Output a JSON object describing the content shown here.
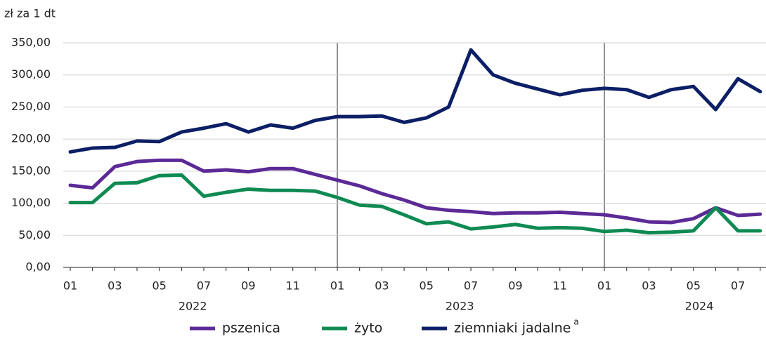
{
  "chart_data": {
    "type": "line",
    "y_axis_label": "zł za 1 dt",
    "categories": [
      "01",
      null,
      "03",
      null,
      "05",
      null,
      "07",
      null,
      "09",
      null,
      "11",
      null,
      "01",
      null,
      "03",
      null,
      "05",
      null,
      "07",
      null,
      "09",
      null,
      "11",
      null,
      "01",
      null,
      "03",
      null,
      "05",
      null,
      "07",
      null
    ],
    "years": [
      "2022",
      "2023",
      "2024"
    ],
    "series": [
      {
        "name": "pszenica",
        "color": "#5b2a96",
        "values": [
          128,
          124,
          157,
          165,
          167,
          167,
          150,
          152,
          149,
          154,
          154,
          145,
          136,
          127,
          115,
          105,
          93,
          89,
          87,
          84,
          85,
          85,
          86,
          84,
          82,
          77,
          71,
          70,
          76,
          93,
          81,
          83
        ]
      },
      {
        "name": "żyto",
        "color": "#0f8a52",
        "values": [
          101,
          101,
          131,
          132,
          143,
          144,
          111,
          117,
          122,
          120,
          120,
          119,
          109,
          97,
          95,
          82,
          68,
          71,
          60,
          63,
          67,
          61,
          62,
          61,
          56,
          58,
          54,
          55,
          57,
          93,
          57,
          57
        ]
      },
      {
        "name": "ziemniaki jadalne",
        "note": "a",
        "color": "#0c1f66",
        "values": [
          180,
          186,
          187,
          197,
          196,
          211,
          217,
          224,
          211,
          222,
          217,
          229,
          235,
          235,
          236,
          226,
          233,
          250,
          339,
          300,
          287,
          278,
          269,
          276,
          279,
          277,
          265,
          277,
          282,
          246,
          294,
          274
        ]
      }
    ],
    "ylim": [
      0,
      350
    ],
    "yticks": [
      {
        "value": 0,
        "label": "0,00"
      },
      {
        "value": 50,
        "label": "50,00"
      },
      {
        "value": 100,
        "label": "100,00"
      },
      {
        "value": 150,
        "label": "150,00"
      },
      {
        "value": 200,
        "label": "200,00"
      },
      {
        "value": 250,
        "label": "250,00"
      },
      {
        "value": 300,
        "label": "300,00"
      },
      {
        "value": 350,
        "label": "350,00"
      }
    ],
    "grid": true
  }
}
